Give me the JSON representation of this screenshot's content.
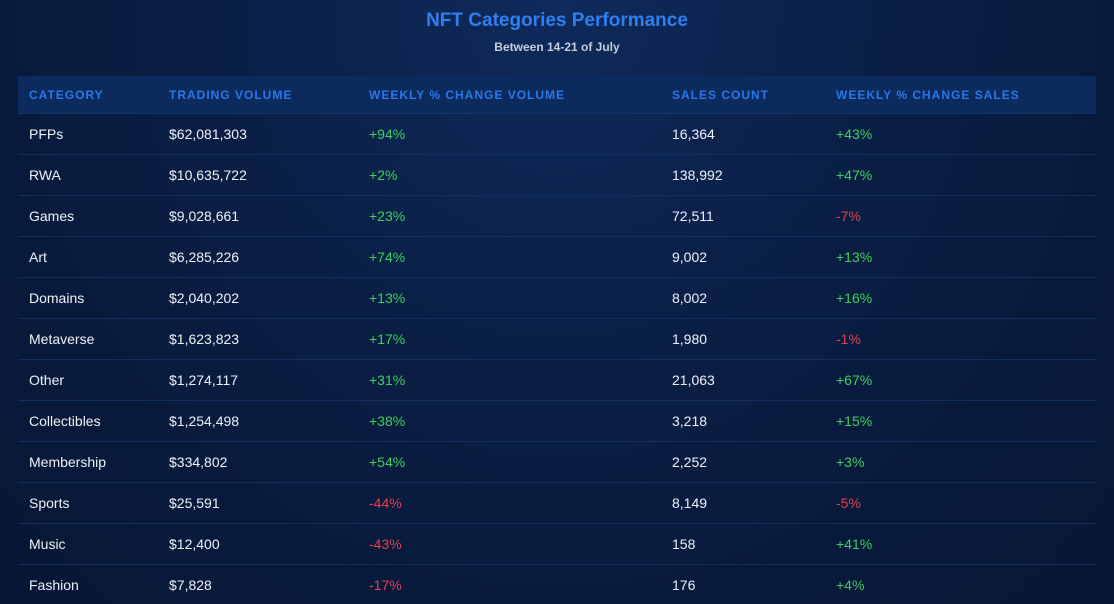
{
  "title": "NFT Categories Performance",
  "subtitle": "Between 14-21 of July",
  "colors": {
    "title": "#2f7ff0",
    "header": "#2a78e8",
    "positive": "#3ecf5e",
    "negative": "#e2414f",
    "background": "#0a1e44"
  },
  "chart_data": {
    "type": "table",
    "title": "NFT Categories Performance",
    "subtitle": "Between 14-21 of July",
    "columns": [
      "CATEGORY",
      "TRADING VOLUME",
      "WEEKLY % CHANGE VOLUME",
      "SALES COUNT",
      "WEEKLY % CHANGE SALES"
    ],
    "rows": [
      [
        "PFPs",
        "$62,081,303",
        "+94%",
        "16,364",
        "+43%"
      ],
      [
        "RWA",
        "$10,635,722",
        "+2%",
        "138,992",
        "+47%"
      ],
      [
        "Games",
        "$9,028,661",
        "+23%",
        "72,511",
        "-7%"
      ],
      [
        "Art",
        "$6,285,226",
        "+74%",
        "9,002",
        "+13%"
      ],
      [
        "Domains",
        "$2,040,202",
        "+13%",
        "8,002",
        "+16%"
      ],
      [
        "Metaverse",
        "$1,623,823",
        "+17%",
        "1,980",
        "-1%"
      ],
      [
        "Other",
        "$1,274,117",
        "+31%",
        "21,063",
        "+67%"
      ],
      [
        "Collectibles",
        "$1,254,498",
        "+38%",
        "3,218",
        "+15%"
      ],
      [
        "Membership",
        "$334,802",
        "+54%",
        "2,252",
        "+3%"
      ],
      [
        "Sports",
        "$25,591",
        "-44%",
        "8,149",
        "-5%"
      ],
      [
        "Music",
        "$12,400",
        "-43%",
        "158",
        "+41%"
      ],
      [
        "Fashion",
        "$7,828",
        "-17%",
        "176",
        "+4%"
      ]
    ]
  }
}
